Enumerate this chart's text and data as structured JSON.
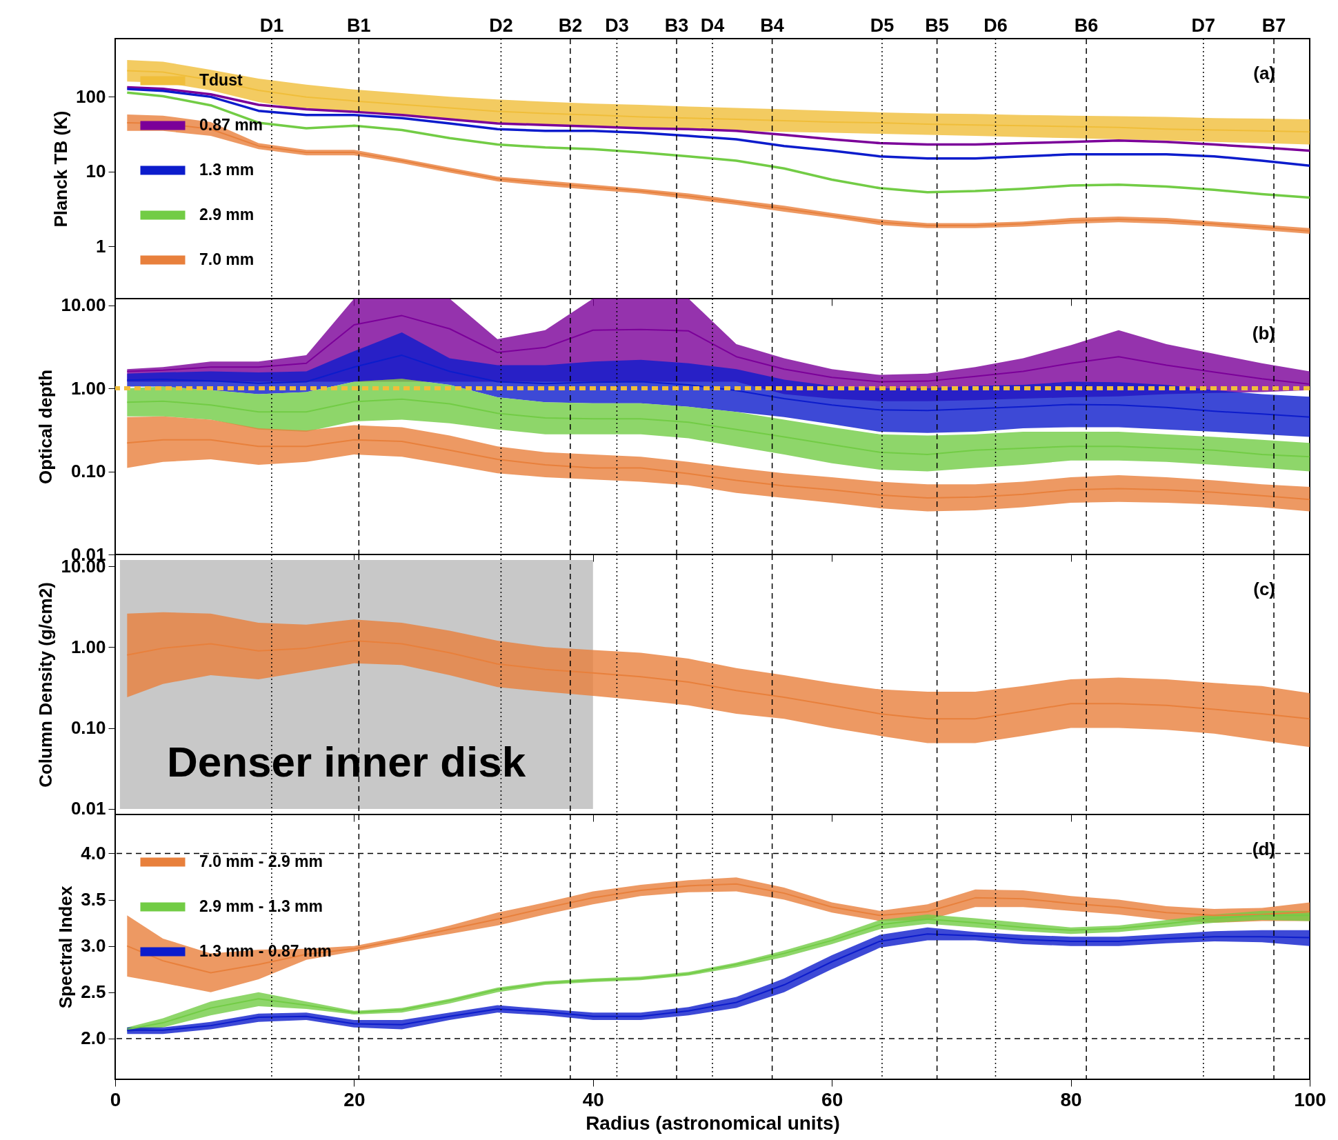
{
  "chart_data": [
    {
      "type": "line",
      "ylabel": "Planck TB (K)",
      "log": true,
      "legend": "bottom left",
      "tick_labels": "y",
      "xlim": [
        0,
        100
      ],
      "xticks": [
        0,
        20,
        40,
        60,
        80,
        100
      ],
      "ylim": [
        0.2,
        600
      ],
      "yticks": [
        1,
        10,
        100
      ],
      "annotations": [
        "(a)"
      ],
      "x": [
        1,
        4,
        8,
        12,
        16,
        20,
        24,
        28,
        32,
        36,
        40,
        44,
        48,
        52,
        56,
        60,
        64,
        68,
        72,
        76,
        80,
        84,
        88,
        92,
        96,
        100
      ],
      "series": [
        {
          "name": "Tdust",
          "color": "#f0be3a",
          "values": [
            223,
            214,
            168,
            122,
            99,
            88,
            79,
            71,
            64,
            60,
            57,
            54,
            52,
            50,
            48,
            46,
            45,
            43,
            42,
            41,
            40,
            39,
            37,
            36,
            35,
            34
          ],
          "lower": [
            160,
            155,
            122,
            85,
            68,
            62,
            56,
            50,
            45,
            42,
            40,
            38,
            36,
            35,
            34,
            33,
            32,
            31,
            30,
            29,
            28,
            27,
            26,
            25,
            24,
            23
          ],
          "upper": [
            310,
            295,
            230,
            175,
            145,
            125,
            112,
            100,
            92,
            86,
            81,
            78,
            74,
            71,
            68,
            65,
            62,
            60,
            59,
            57,
            56,
            55,
            54,
            52,
            51,
            50
          ]
        },
        {
          "name": "0.87 mm",
          "color": "#7b0099",
          "values": [
            134,
            128,
            108,
            78,
            68,
            63,
            57,
            50,
            44,
            42,
            40,
            38,
            37,
            35,
            31,
            27,
            24,
            23,
            23,
            24,
            25,
            26,
            25,
            23,
            21,
            19
          ]
        },
        {
          "name": "1.3 mm",
          "color": "#0c1ccc",
          "values": [
            127,
            120,
            100,
            65,
            57,
            57,
            52,
            44,
            37,
            35,
            35,
            33,
            30,
            27,
            22,
            19,
            16,
            15,
            15,
            16,
            17,
            17,
            17,
            16,
            14,
            12
          ]
        },
        {
          "name": "2.9 mm",
          "color": "#72cc45",
          "values": [
            114,
            102,
            77,
            45,
            38,
            41,
            36,
            28,
            23,
            21,
            20,
            18,
            16,
            14,
            11,
            7.8,
            6.0,
            5.3,
            5.5,
            5.9,
            6.5,
            6.7,
            6.3,
            5.7,
            5.0,
            4.5
          ]
        },
        {
          "name": "7.0 mm",
          "color": "#e8803c",
          "values": [
            45,
            44,
            37,
            22,
            18,
            18,
            14,
            10.5,
            8,
            7,
            6.2,
            5.5,
            4.7,
            3.9,
            3.2,
            2.6,
            2.1,
            1.9,
            1.9,
            2.0,
            2.2,
            2.3,
            2.2,
            2.0,
            1.8,
            1.6
          ],
          "lower": [
            35,
            35,
            30,
            20,
            16.5,
            16.5,
            12.9,
            9.7,
            7.4,
            6.4,
            5.7,
            5.1,
            4.3,
            3.6,
            2.9,
            2.4,
            1.93,
            1.75,
            1.75,
            1.84,
            2.0,
            2.1,
            2.0,
            1.84,
            1.65,
            1.47
          ],
          "upper": [
            58,
            56,
            46,
            24,
            19.5,
            19.5,
            15,
            11.3,
            8.6,
            7.6,
            6.7,
            5.9,
            5.1,
            4.2,
            3.5,
            2.8,
            2.3,
            2.05,
            2.05,
            2.15,
            2.4,
            2.5,
            2.4,
            2.15,
            1.95,
            1.75
          ]
        }
      ],
      "ref_lines": [
        {
          "axis": "x",
          "value": 13.1,
          "label": "D1",
          "line_style": "dotted"
        },
        {
          "axis": "x",
          "value": 20.4,
          "label": "B1",
          "line_style": "dashed"
        },
        {
          "axis": "x",
          "value": 32.3,
          "label": "D2",
          "line_style": "dotted"
        },
        {
          "axis": "x",
          "value": 38.1,
          "label": "B2",
          "line_style": "dashed"
        },
        {
          "axis": "x",
          "value": 42.0,
          "label": "D3",
          "line_style": "dotted"
        },
        {
          "axis": "x",
          "value": 47.0,
          "label": "B3",
          "line_style": "dashed"
        },
        {
          "axis": "x",
          "value": 50.0,
          "label": "D4",
          "line_style": "dotted"
        },
        {
          "axis": "x",
          "value": 55.0,
          "label": "B4",
          "line_style": "dashed"
        },
        {
          "axis": "x",
          "value": 64.2,
          "label": "D5",
          "line_style": "dotted"
        },
        {
          "axis": "x",
          "value": 68.8,
          "label": "B5",
          "line_style": "dashed"
        },
        {
          "axis": "x",
          "value": 73.7,
          "label": "D6",
          "line_style": "dotted"
        },
        {
          "axis": "x",
          "value": 81.3,
          "label": "B6",
          "line_style": "dashed"
        },
        {
          "axis": "x",
          "value": 91.1,
          "label": "D7",
          "line_style": "dotted"
        },
        {
          "axis": "x",
          "value": 97.0,
          "label": "B7",
          "line_style": "dashed"
        }
      ]
    },
    {
      "type": "line",
      "ylabel": "Optical depth",
      "log": true,
      "tick_labels": "y",
      "xlim": [
        0,
        100
      ],
      "xticks": [
        0,
        20,
        40,
        60,
        80,
        100
      ],
      "ylim": [
        0.01,
        12
      ],
      "yticks": [
        {
          "value": 0.01,
          "label": "0.01"
        },
        {
          "value": 0.1,
          "label": "0.10"
        },
        {
          "value": 1,
          "label": "1.00"
        },
        {
          "value": 10,
          "label": "10.00"
        }
      ],
      "annotations": [
        "(b)"
      ],
      "x": [
        1,
        4,
        8,
        12,
        16,
        20,
        24,
        28,
        32,
        36,
        40,
        44,
        48,
        52,
        56,
        60,
        64,
        68,
        72,
        76,
        80,
        84,
        88,
        92,
        96,
        100
      ],
      "series": [
        {
          "color": "#7b0099",
          "values": [
            1.6,
            1.65,
            1.8,
            1.8,
            2.0,
            5.8,
            7.5,
            5.2,
            2.7,
            3.1,
            5,
            5.1,
            4.9,
            2.4,
            1.7,
            1.35,
            1.2,
            1.22,
            1.39,
            1.6,
            2.0,
            2.4,
            1.9,
            1.57,
            1.3,
            1.12
          ],
          "lower": [
            1.2,
            1.2,
            1.2,
            1.2,
            1.2,
            1.2,
            1.2,
            1.2,
            1.2,
            1.2,
            1.2,
            1.2,
            1.2,
            1.2,
            0.85,
            0.75,
            0.7,
            0.7,
            0.72,
            0.75,
            0.78,
            0.8,
            0.85,
            0.88,
            0.9,
            0.95
          ],
          "upper": [
            1.7,
            1.8,
            2.1,
            2.1,
            2.5,
            12,
            12,
            12,
            3.9,
            5.0,
            12,
            12,
            12,
            3.4,
            2.3,
            1.7,
            1.45,
            1.5,
            1.8,
            2.3,
            3.3,
            5.0,
            3.4,
            2.6,
            2.0,
            1.6
          ]
        },
        {
          "color": "#0c1ccc",
          "values": [
            1.25,
            1.28,
            1.23,
            1.15,
            1.2,
            1.8,
            2.5,
            1.6,
            1.2,
            1.14,
            1.18,
            1.2,
            1.1,
            0.94,
            0.75,
            0.63,
            0.55,
            0.54,
            0.57,
            0.6,
            0.64,
            0.63,
            0.59,
            0.53,
            0.49,
            0.45
          ],
          "lower": [
            1.05,
            1.05,
            0.95,
            0.85,
            0.9,
            1.2,
            1.3,
            1.1,
            0.78,
            0.68,
            0.66,
            0.66,
            0.6,
            0.52,
            0.45,
            0.37,
            0.3,
            0.29,
            0.3,
            0.33,
            0.34,
            0.34,
            0.32,
            0.3,
            0.28,
            0.26
          ],
          "upper": [
            1.5,
            1.55,
            1.6,
            1.55,
            1.6,
            2.8,
            4.7,
            2.3,
            1.9,
            1.9,
            2.1,
            2.2,
            2.0,
            1.7,
            1.27,
            1.07,
            1.0,
            1.0,
            1.07,
            1.1,
            1.2,
            1.18,
            1.1,
            0.95,
            0.85,
            0.79
          ]
        },
        {
          "color": "#72cc45",
          "values": [
            0.68,
            0.7,
            0.63,
            0.52,
            0.52,
            0.69,
            0.74,
            0.65,
            0.5,
            0.44,
            0.43,
            0.43,
            0.39,
            0.32,
            0.26,
            0.21,
            0.17,
            0.16,
            0.18,
            0.19,
            0.2,
            0.2,
            0.19,
            0.18,
            0.16,
            0.15
          ],
          "lower": [
            0.46,
            0.46,
            0.42,
            0.32,
            0.3,
            0.4,
            0.42,
            0.38,
            0.32,
            0.28,
            0.28,
            0.28,
            0.25,
            0.2,
            0.16,
            0.125,
            0.105,
            0.1,
            0.11,
            0.12,
            0.135,
            0.135,
            0.13,
            0.12,
            0.11,
            0.1
          ],
          "upper": [
            1.0,
            1.05,
            0.95,
            0.85,
            0.9,
            1.2,
            1.3,
            1.1,
            0.78,
            0.68,
            0.66,
            0.66,
            0.6,
            0.52,
            0.42,
            0.34,
            0.28,
            0.27,
            0.28,
            0.3,
            0.3,
            0.3,
            0.28,
            0.26,
            0.24,
            0.22
          ]
        },
        {
          "color": "#e8803c",
          "values": [
            0.22,
            0.24,
            0.24,
            0.2,
            0.2,
            0.24,
            0.23,
            0.18,
            0.14,
            0.12,
            0.11,
            0.11,
            0.094,
            0.078,
            0.067,
            0.06,
            0.052,
            0.048,
            0.049,
            0.053,
            0.06,
            0.062,
            0.06,
            0.056,
            0.051,
            0.046
          ],
          "lower": [
            0.11,
            0.13,
            0.14,
            0.12,
            0.13,
            0.16,
            0.15,
            0.12,
            0.095,
            0.085,
            0.08,
            0.075,
            0.068,
            0.055,
            0.048,
            0.042,
            0.036,
            0.033,
            0.034,
            0.037,
            0.042,
            0.043,
            0.042,
            0.04,
            0.037,
            0.033
          ],
          "upper": [
            0.45,
            0.46,
            0.42,
            0.33,
            0.31,
            0.36,
            0.34,
            0.27,
            0.2,
            0.17,
            0.16,
            0.15,
            0.13,
            0.11,
            0.095,
            0.085,
            0.075,
            0.07,
            0.07,
            0.075,
            0.085,
            0.09,
            0.085,
            0.078,
            0.07,
            0.065
          ]
        }
      ],
      "ref_lines": [
        {
          "axis": "x",
          "value": 13.1,
          "line_style": "dotted"
        },
        {
          "axis": "x",
          "value": 20.4,
          "line_style": "dashed"
        },
        {
          "axis": "x",
          "value": 32.3,
          "line_style": "dotted"
        },
        {
          "axis": "x",
          "value": 38.1,
          "line_style": "dashed"
        },
        {
          "axis": "x",
          "value": 42.0,
          "line_style": "dotted"
        },
        {
          "axis": "x",
          "value": 47.0,
          "line_style": "dashed"
        },
        {
          "axis": "x",
          "value": 50.0,
          "line_style": "dotted"
        },
        {
          "axis": "x",
          "value": 55.0,
          "line_style": "dashed"
        },
        {
          "axis": "x",
          "value": 64.2,
          "line_style": "dotted"
        },
        {
          "axis": "x",
          "value": 68.8,
          "line_style": "dashed"
        },
        {
          "axis": "x",
          "value": 73.7,
          "line_style": "dotted"
        },
        {
          "axis": "x",
          "value": 81.3,
          "line_style": "dashed"
        },
        {
          "axis": "x",
          "value": 91.1,
          "line_style": "dotted"
        },
        {
          "axis": "x",
          "value": 97.0,
          "line_style": "dashed"
        },
        {
          "axis": "y",
          "value": 1,
          "line_style": "dashed",
          "color": "#f0be3a"
        }
      ]
    },
    {
      "type": "line",
      "ylabel": "Column Density (g/cm2)",
      "log": true,
      "tick_labels": "y",
      "xlim": [
        0,
        100
      ],
      "xticks": [
        0,
        20,
        40,
        60,
        80,
        100
      ],
      "ylim": [
        0.0085,
        14
      ],
      "yticks": [
        {
          "value": 0.01,
          "label": "0.01"
        },
        {
          "value": 0.1,
          "label": "0.10"
        },
        {
          "value": 1,
          "label": "1.00"
        },
        {
          "value": 10,
          "label": "10.00"
        }
      ],
      "annotations": [
        "(c)"
      ],
      "x": [
        1,
        4,
        8,
        12,
        16,
        20,
        24,
        28,
        32,
        36,
        40,
        44,
        48,
        52,
        56,
        60,
        64,
        68,
        72,
        76,
        80,
        84,
        88,
        92,
        96,
        100
      ],
      "series": [
        {
          "color": "#e8803c",
          "values": [
            0.8,
            0.97,
            1.1,
            0.9,
            0.97,
            1.2,
            1.1,
            0.85,
            0.62,
            0.53,
            0.48,
            0.43,
            0.37,
            0.29,
            0.24,
            0.19,
            0.15,
            0.13,
            0.13,
            0.16,
            0.2,
            0.2,
            0.19,
            0.17,
            0.15,
            0.13
          ],
          "lower": [
            0.24,
            0.35,
            0.45,
            0.4,
            0.5,
            0.63,
            0.6,
            0.45,
            0.32,
            0.28,
            0.25,
            0.22,
            0.19,
            0.15,
            0.13,
            0.1,
            0.08,
            0.065,
            0.065,
            0.08,
            0.1,
            0.1,
            0.095,
            0.085,
            0.07,
            0.058
          ],
          "upper": [
            2.6,
            2.7,
            2.6,
            2.0,
            1.9,
            2.2,
            2.0,
            1.6,
            1.2,
            1.0,
            0.92,
            0.85,
            0.72,
            0.55,
            0.45,
            0.36,
            0.3,
            0.28,
            0.28,
            0.33,
            0.4,
            0.42,
            0.4,
            0.36,
            0.33,
            0.27
          ]
        }
      ],
      "bands": [
        {
          "axis": "x",
          "from": 0.4,
          "to": 40,
          "label": "Denser inner disk",
          "color": "#c8c8c8"
        }
      ],
      "ref_lines": [
        {
          "axis": "x",
          "value": 13.1,
          "line_style": "dotted"
        },
        {
          "axis": "x",
          "value": 20.4,
          "line_style": "dashed"
        },
        {
          "axis": "x",
          "value": 32.3,
          "line_style": "dotted"
        },
        {
          "axis": "x",
          "value": 38.1,
          "line_style": "dashed"
        },
        {
          "axis": "x",
          "value": 42.0,
          "line_style": "dotted"
        },
        {
          "axis": "x",
          "value": 47.0,
          "line_style": "dashed"
        },
        {
          "axis": "x",
          "value": 50.0,
          "line_style": "dotted"
        },
        {
          "axis": "x",
          "value": 55.0,
          "line_style": "dashed"
        },
        {
          "axis": "x",
          "value": 64.2,
          "line_style": "dotted"
        },
        {
          "axis": "x",
          "value": 68.8,
          "line_style": "dashed"
        },
        {
          "axis": "x",
          "value": 73.7,
          "line_style": "dotted"
        },
        {
          "axis": "x",
          "value": 81.3,
          "line_style": "dashed"
        },
        {
          "axis": "x",
          "value": 91.1,
          "line_style": "dotted"
        },
        {
          "axis": "x",
          "value": 97.0,
          "line_style": "dashed"
        }
      ]
    },
    {
      "type": "line",
      "xlabel": "Radius (astronomical units)",
      "ylabel": "Spectral Index",
      "legend": "top left",
      "xlim": [
        0,
        100
      ],
      "xticks": [
        0,
        20,
        40,
        60,
        80,
        100
      ],
      "ylim": [
        1.56,
        4.42
      ],
      "yticks": [
        {
          "value": 2,
          "label": "2.0"
        },
        2.5,
        {
          "value": 3,
          "label": "3.0"
        },
        3.5,
        {
          "value": 4,
          "label": "4.0"
        }
      ],
      "annotations": [
        "(d)"
      ],
      "x": [
        1,
        4,
        8,
        12,
        16,
        20,
        24,
        28,
        32,
        36,
        40,
        44,
        48,
        52,
        56,
        60,
        64,
        68,
        72,
        76,
        80,
        84,
        88,
        92,
        96,
        100
      ],
      "series": [
        {
          "name": "7.0 mm - 2.9 mm",
          "color": "#e8803c",
          "values": [
            3.0,
            2.84,
            2.71,
            2.8,
            2.91,
            2.97,
            3.07,
            3.18,
            3.29,
            3.41,
            3.52,
            3.6,
            3.65,
            3.67,
            3.57,
            3.42,
            3.33,
            3.37,
            3.52,
            3.51,
            3.46,
            3.42,
            3.36,
            3.33,
            3.34,
            3.37
          ],
          "lower": [
            2.67,
            2.6,
            2.5,
            2.64,
            2.85,
            2.94,
            3.04,
            3.13,
            3.22,
            3.34,
            3.45,
            3.54,
            3.58,
            3.59,
            3.5,
            3.36,
            3.27,
            3.28,
            3.42,
            3.42,
            3.38,
            3.34,
            3.28,
            3.25,
            3.27,
            3.27
          ],
          "upper": [
            3.33,
            3.08,
            2.92,
            2.96,
            2.97,
            3.0,
            3.1,
            3.22,
            3.36,
            3.47,
            3.59,
            3.66,
            3.71,
            3.74,
            3.63,
            3.47,
            3.38,
            3.45,
            3.61,
            3.6,
            3.54,
            3.5,
            3.43,
            3.4,
            3.41,
            3.47
          ]
        },
        {
          "name": "2.9 mm - 1.3 mm",
          "color": "#72cc45",
          "values": [
            2.1,
            2.17,
            2.33,
            2.43,
            2.36,
            2.28,
            2.31,
            2.41,
            2.53,
            2.6,
            2.63,
            2.65,
            2.7,
            2.8,
            2.92,
            3.06,
            3.23,
            3.29,
            3.25,
            3.2,
            3.17,
            3.19,
            3.24,
            3.3,
            3.33,
            3.33
          ],
          "lower": [
            2.07,
            2.12,
            2.25,
            2.35,
            2.32,
            2.26,
            2.28,
            2.38,
            2.5,
            2.58,
            2.61,
            2.63,
            2.68,
            2.77,
            2.88,
            3.02,
            3.18,
            3.24,
            3.2,
            3.16,
            3.13,
            3.15,
            3.2,
            3.25,
            3.28,
            3.27
          ],
          "upper": [
            2.12,
            2.22,
            2.4,
            2.5,
            2.4,
            2.3,
            2.33,
            2.43,
            2.55,
            2.62,
            2.65,
            2.67,
            2.72,
            2.82,
            2.95,
            3.1,
            3.28,
            3.34,
            3.3,
            3.25,
            3.2,
            3.22,
            3.28,
            3.34,
            3.38,
            3.38
          ]
        },
        {
          "name": "1.3 mm - 0.87 mm",
          "color": "#0c1ccc",
          "values": [
            2.09,
            2.09,
            2.14,
            2.23,
            2.24,
            2.16,
            2.15,
            2.24,
            2.32,
            2.29,
            2.24,
            2.24,
            2.3,
            2.39,
            2.58,
            2.83,
            3.05,
            3.13,
            3.11,
            3.07,
            3.05,
            3.05,
            3.08,
            3.1,
            3.1,
            3.09
          ],
          "lower": [
            2.05,
            2.05,
            2.1,
            2.18,
            2.2,
            2.12,
            2.1,
            2.2,
            2.28,
            2.25,
            2.2,
            2.2,
            2.25,
            2.33,
            2.5,
            2.75,
            2.98,
            3.06,
            3.06,
            3.02,
            3.0,
            3.0,
            3.03,
            3.05,
            3.04,
            3.0
          ],
          "upper": [
            2.12,
            2.12,
            2.18,
            2.27,
            2.28,
            2.2,
            2.2,
            2.28,
            2.36,
            2.32,
            2.28,
            2.28,
            2.34,
            2.45,
            2.65,
            2.9,
            3.12,
            3.2,
            3.15,
            3.12,
            3.1,
            3.1,
            3.13,
            3.16,
            3.17,
            3.17
          ]
        }
      ],
      "ref_lines": [
        {
          "axis": "x",
          "value": 13.1,
          "line_style": "dotted"
        },
        {
          "axis": "x",
          "value": 20.4,
          "line_style": "dashed"
        },
        {
          "axis": "x",
          "value": 32.3,
          "line_style": "dotted"
        },
        {
          "axis": "x",
          "value": 38.1,
          "line_style": "dashed"
        },
        {
          "axis": "x",
          "value": 42.0,
          "line_style": "dotted"
        },
        {
          "axis": "x",
          "value": 47.0,
          "line_style": "dashed"
        },
        {
          "axis": "x",
          "value": 50.0,
          "line_style": "dotted"
        },
        {
          "axis": "x",
          "value": 55.0,
          "line_style": "dashed"
        },
        {
          "axis": "x",
          "value": 64.2,
          "line_style": "dotted"
        },
        {
          "axis": "x",
          "value": 68.8,
          "line_style": "dashed"
        },
        {
          "axis": "x",
          "value": 73.7,
          "line_style": "dotted"
        },
        {
          "axis": "x",
          "value": 81.3,
          "line_style": "dashed"
        },
        {
          "axis": "x",
          "value": 91.1,
          "line_style": "dotted"
        },
        {
          "axis": "x",
          "value": 97.0,
          "line_style": "dashed"
        },
        {
          "axis": "y",
          "value": 4,
          "line_style": "dashed"
        },
        {
          "axis": "y",
          "value": 2,
          "line_style": "dashed"
        }
      ]
    }
  ]
}
